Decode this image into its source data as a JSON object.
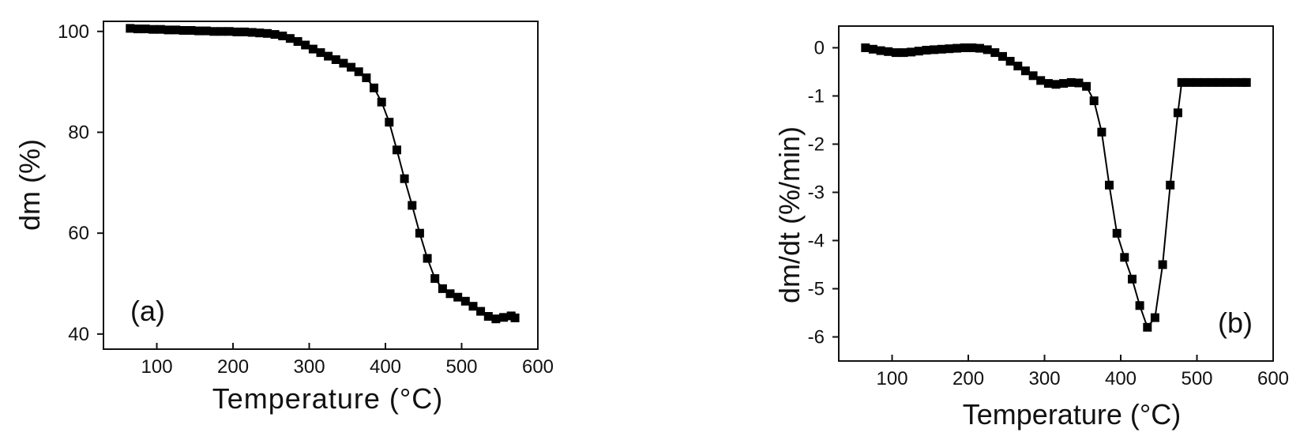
{
  "chart_data": [
    {
      "id": "a",
      "type": "scatter",
      "panel_label": "(a)",
      "title": "",
      "xlabel": "Temperature (°C)",
      "ylabel": "dm (%)",
      "xlim": [
        30,
        600
      ],
      "ylim": [
        37,
        102
      ],
      "xticks": [
        100,
        200,
        300,
        400,
        500,
        600
      ],
      "yticks": [
        40,
        60,
        80,
        100
      ],
      "grid": false,
      "legend": "none",
      "marker": "square",
      "series": [
        {
          "x": [
            65,
            75,
            85,
            95,
            105,
            115,
            125,
            135,
            145,
            155,
            165,
            175,
            185,
            195,
            205,
            215,
            225,
            235,
            245,
            255,
            265,
            275,
            285,
            295,
            305,
            315,
            325,
            335,
            345,
            355,
            365,
            375,
            385,
            395,
            405,
            415,
            425,
            435,
            445,
            455,
            465,
            475,
            485,
            495,
            505,
            515,
            525,
            535,
            545,
            555,
            565,
            570
          ],
          "y": [
            100.6,
            100.5,
            100.5,
            100.4,
            100.4,
            100.3,
            100.3,
            100.2,
            100.2,
            100.1,
            100.1,
            100.0,
            100.0,
            100.0,
            99.9,
            99.9,
            99.8,
            99.7,
            99.6,
            99.4,
            99.1,
            98.6,
            98.0,
            97.3,
            96.5,
            95.8,
            95.1,
            94.4,
            93.7,
            92.9,
            92.0,
            90.8,
            88.8,
            86.0,
            82.0,
            76.5,
            70.8,
            65.5,
            60.0,
            55.0,
            51.0,
            49.0,
            48.0,
            47.3,
            46.5,
            45.5,
            44.5,
            43.5,
            43.0,
            43.3,
            43.6,
            43.2
          ]
        }
      ]
    },
    {
      "id": "b",
      "type": "scatter",
      "panel_label": "(b)",
      "title": "",
      "xlabel": "Temperature (°C)",
      "ylabel": "dm/dt  (%/min)",
      "xlim": [
        30,
        600
      ],
      "ylim": [
        -6.5,
        0.45
      ],
      "xticks": [
        100,
        200,
        300,
        400,
        500,
        600
      ],
      "yticks": [
        0,
        -1,
        -2,
        -3,
        -4,
        -5,
        -6
      ],
      "grid": false,
      "legend": "none",
      "marker": "square",
      "series": [
        {
          "x": [
            65,
            75,
            85,
            95,
            105,
            115,
            125,
            135,
            145,
            155,
            165,
            175,
            185,
            195,
            205,
            215,
            225,
            235,
            245,
            255,
            265,
            275,
            285,
            295,
            305,
            315,
            325,
            335,
            345,
            355,
            365,
            375,
            385,
            395,
            405,
            415,
            425,
            435,
            445,
            455,
            465,
            475,
            480,
            490,
            500,
            510,
            520,
            530,
            540,
            550,
            560,
            565
          ],
          "y": [
            0.0,
            -0.03,
            -0.06,
            -0.08,
            -0.1,
            -0.1,
            -0.09,
            -0.07,
            -0.05,
            -0.04,
            -0.03,
            -0.02,
            -0.01,
            0.0,
            0.0,
            -0.01,
            -0.04,
            -0.1,
            -0.18,
            -0.28,
            -0.38,
            -0.48,
            -0.58,
            -0.68,
            -0.74,
            -0.76,
            -0.74,
            -0.72,
            -0.73,
            -0.8,
            -1.1,
            -1.75,
            -2.85,
            -3.85,
            -4.35,
            -4.8,
            -5.35,
            -5.8,
            -5.6,
            -4.5,
            -2.85,
            -1.35,
            -0.72,
            -0.72,
            -0.72,
            -0.72,
            -0.72,
            -0.72,
            -0.72,
            -0.72,
            -0.72,
            -0.72
          ]
        }
      ]
    }
  ]
}
